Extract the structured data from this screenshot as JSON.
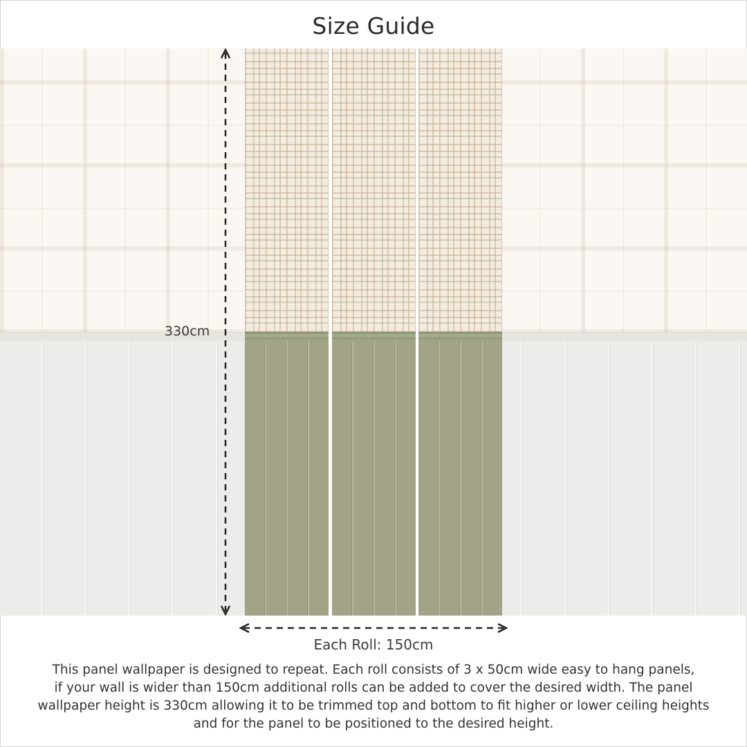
{
  "title": "Size Guide",
  "height_label": "330cm",
  "roll_label": "Each Roll: 150cm",
  "description_lines": [
    "This panel wallpaper is designed to repeat. Each roll consists of 3 x 50cm wide easy to hang panels,",
    "if your wall is wider than 150cm additional rolls can be added to cover the desired width. The panel",
    "wallpaper height is 330cm allowing it to be trimmed top and bottom to fit higher or lower ceiling heights",
    "and for the panel to be positioned to the desired height."
  ],
  "colors": {
    "panel_top": "#f5ece0",
    "panel_bottom": "#a3a487",
    "wall_faded": "#ececea",
    "text": "#333333"
  }
}
